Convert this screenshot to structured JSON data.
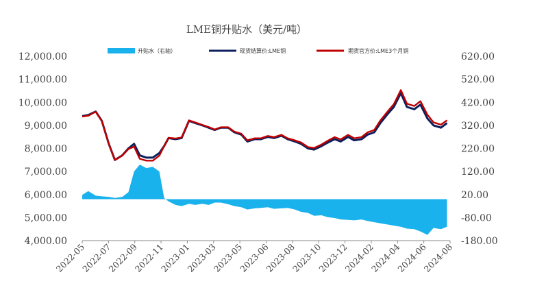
{
  "chart_data": {
    "type": "line",
    "title": "LME铜升贴水（美元/吨）",
    "legend_position": "top",
    "grid": false,
    "x_ticks": [
      "2022-05",
      "2022-07",
      "2022-09",
      "2022-11",
      "2023-01",
      "2023-03",
      "2023-05",
      "2023-06",
      "2023-08",
      "2023-10",
      "2023-12",
      "2024-02",
      "2024-04",
      "2024-06",
      "2024-08"
    ],
    "y_left": {
      "ylim": [
        4000,
        12000
      ],
      "ticks": [
        "4,000.00",
        "5,000.00",
        "6,000.00",
        "7,000.00",
        "8,000.00",
        "9,000.00",
        "10,000.00",
        "11,000.00",
        "12,000.00"
      ]
    },
    "y_right": {
      "ylim": [
        -180,
        620
      ],
      "ticks": [
        "-180.00",
        "-80.00",
        "20.00",
        "120.00",
        "220.00",
        "320.00",
        "420.00",
        "520.00",
        "620.00"
      ]
    },
    "series": [
      {
        "name": "升贴水（右轴）",
        "type": "area",
        "axis": "right",
        "color": "#1ab2ec",
        "x": [
          "2022-05-01",
          "2022-05-15",
          "2022-06-01",
          "2022-06-15",
          "2022-07-01",
          "2022-07-15",
          "2022-08-01",
          "2022-08-15",
          "2022-08-28",
          "2022-09-10",
          "2022-09-25",
          "2022-10-10",
          "2022-10-25",
          "2022-11-05",
          "2022-11-15",
          "2022-12-01",
          "2022-12-15",
          "2023-01-01",
          "2023-01-15",
          "2023-02-01",
          "2023-02-15",
          "2023-03-01",
          "2023-03-15",
          "2023-04-01",
          "2023-04-15",
          "2023-05-01",
          "2023-05-15",
          "2023-06-01",
          "2023-06-15",
          "2023-07-01",
          "2023-07-15",
          "2023-08-01",
          "2023-08-15",
          "2023-09-01",
          "2023-09-15",
          "2023-10-01",
          "2023-10-15",
          "2023-11-01",
          "2023-11-15",
          "2023-12-01",
          "2023-12-15",
          "2024-01-01",
          "2024-01-15",
          "2024-02-01",
          "2024-02-15",
          "2024-03-01",
          "2024-03-15",
          "2024-04-01",
          "2024-04-15",
          "2024-05-01",
          "2024-05-15",
          "2024-06-01",
          "2024-06-15",
          "2024-07-01",
          "2024-07-15",
          "2024-08-01",
          "2024-08-15"
        ],
        "values": [
          18,
          35,
          15,
          12,
          10,
          5,
          10,
          30,
          120,
          150,
          135,
          140,
          120,
          5,
          -10,
          -25,
          -30,
          -20,
          -25,
          -20,
          -25,
          -15,
          -15,
          -22,
          -30,
          -35,
          -45,
          -40,
          -38,
          -35,
          -42,
          -40,
          -38,
          -45,
          -55,
          -60,
          -72,
          -70,
          -78,
          -82,
          -88,
          -90,
          -92,
          -88,
          -95,
          -100,
          -105,
          -110,
          -115,
          -120,
          -128,
          -130,
          -140,
          -155,
          -125,
          -130,
          -120
        ]
      },
      {
        "name": "现货结算价:LME铜",
        "type": "line",
        "axis": "left",
        "color": "#0d1f5c",
        "x": [
          "2022-05-01",
          "2022-05-15",
          "2022-06-01",
          "2022-06-15",
          "2022-07-01",
          "2022-07-15",
          "2022-08-01",
          "2022-08-15",
          "2022-08-28",
          "2022-09-10",
          "2022-09-25",
          "2022-10-10",
          "2022-10-25",
          "2022-11-05",
          "2022-11-15",
          "2022-12-01",
          "2022-12-15",
          "2023-01-01",
          "2023-01-15",
          "2023-02-01",
          "2023-02-15",
          "2023-03-01",
          "2023-03-15",
          "2023-04-01",
          "2023-04-15",
          "2023-05-01",
          "2023-05-15",
          "2023-06-01",
          "2023-06-15",
          "2023-07-01",
          "2023-07-15",
          "2023-08-01",
          "2023-08-15",
          "2023-09-01",
          "2023-09-15",
          "2023-10-01",
          "2023-10-15",
          "2023-11-01",
          "2023-11-15",
          "2023-12-01",
          "2023-12-15",
          "2024-01-01",
          "2024-01-15",
          "2024-02-01",
          "2024-02-15",
          "2024-03-01",
          "2024-03-15",
          "2024-04-01",
          "2024-04-15",
          "2024-05-01",
          "2024-05-15",
          "2024-06-01",
          "2024-06-15",
          "2024-07-01",
          "2024-07-15",
          "2024-08-01",
          "2024-08-15"
        ],
        "values": [
          9400,
          9450,
          9600,
          9200,
          8200,
          7500,
          7700,
          8000,
          8200,
          7700,
          7600,
          7600,
          7800,
          8100,
          8450,
          8400,
          8450,
          9200,
          9100,
          9000,
          8900,
          8800,
          8900,
          8900,
          8700,
          8600,
          8300,
          8400,
          8400,
          8500,
          8450,
          8550,
          8400,
          8300,
          8200,
          8000,
          7950,
          8100,
          8250,
          8400,
          8300,
          8500,
          8350,
          8400,
          8600,
          8700,
          9100,
          9500,
          9800,
          10400,
          9800,
          9700,
          9900,
          9300,
          9000,
          8900,
          9100
        ]
      },
      {
        "name": "期货官方价:LME3个月铜",
        "type": "line",
        "axis": "left",
        "color": "#c00000",
        "x": [
          "2022-05-01",
          "2022-05-15",
          "2022-06-01",
          "2022-06-15",
          "2022-07-01",
          "2022-07-15",
          "2022-08-01",
          "2022-08-15",
          "2022-08-28",
          "2022-09-10",
          "2022-09-25",
          "2022-10-10",
          "2022-10-25",
          "2022-11-05",
          "2022-11-15",
          "2022-12-01",
          "2022-12-15",
          "2023-01-01",
          "2023-01-15",
          "2023-02-01",
          "2023-02-15",
          "2023-03-01",
          "2023-03-15",
          "2023-04-01",
          "2023-04-15",
          "2023-05-01",
          "2023-05-15",
          "2023-06-01",
          "2023-06-15",
          "2023-07-01",
          "2023-07-15",
          "2023-08-01",
          "2023-08-15",
          "2023-09-01",
          "2023-09-15",
          "2023-10-01",
          "2023-10-15",
          "2023-11-01",
          "2023-11-15",
          "2023-12-01",
          "2023-12-15",
          "2024-01-01",
          "2024-01-15",
          "2024-02-01",
          "2024-02-15",
          "2024-03-01",
          "2024-03-15",
          "2024-04-01",
          "2024-04-15",
          "2024-05-01",
          "2024-05-15",
          "2024-06-01",
          "2024-06-15",
          "2024-07-01",
          "2024-07-15",
          "2024-08-01",
          "2024-08-15"
        ],
        "values": [
          9380,
          9420,
          9590,
          9190,
          8190,
          7500,
          7690,
          7970,
          8080,
          7550,
          7470,
          7470,
          7690,
          8100,
          8460,
          8430,
          8480,
          9220,
          9130,
          9020,
          8930,
          8820,
          8920,
          8920,
          8730,
          8640,
          8350,
          8440,
          8440,
          8540,
          8490,
          8590,
          8440,
          8350,
          8260,
          8060,
          8020,
          8170,
          8330,
          8490,
          8390,
          8590,
          8440,
          8490,
          8700,
          8800,
          9210,
          9610,
          9920,
          10530,
          9940,
          9840,
          10050,
          9460,
          9130,
          9030,
          9220
        ]
      }
    ]
  }
}
